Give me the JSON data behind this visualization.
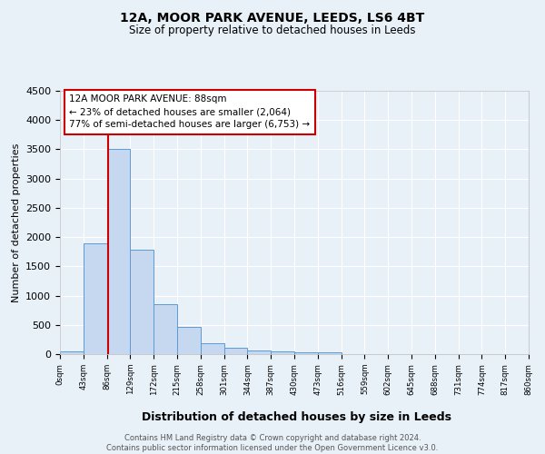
{
  "title": "12A, MOOR PARK AVENUE, LEEDS, LS6 4BT",
  "subtitle": "Size of property relative to detached houses in Leeds",
  "xlabel": "Distribution of detached houses by size in Leeds",
  "ylabel": "Number of detached properties",
  "bar_color": "#c5d8f0",
  "bar_edge_color": "#5b9bd5",
  "bg_color": "#e8f0f8",
  "grid_color": "#ffffff",
  "bins": [
    "0sqm",
    "43sqm",
    "86sqm",
    "129sqm",
    "172sqm",
    "215sqm",
    "258sqm",
    "301sqm",
    "344sqm",
    "387sqm",
    "430sqm",
    "473sqm",
    "516sqm",
    "559sqm",
    "602sqm",
    "645sqm",
    "688sqm",
    "731sqm",
    "774sqm",
    "817sqm",
    "860sqm"
  ],
  "bar_values": [
    50,
    1900,
    3500,
    1780,
    850,
    460,
    185,
    105,
    60,
    40,
    35,
    30,
    5,
    0,
    0,
    0,
    0,
    0,
    0,
    0
  ],
  "vline_x": 88,
  "vline_color": "#cc0000",
  "ylim": [
    0,
    4500
  ],
  "yticks": [
    0,
    500,
    1000,
    1500,
    2000,
    2500,
    3000,
    3500,
    4000,
    4500
  ],
  "annotation_title": "12A MOOR PARK AVENUE: 88sqm",
  "annotation_line1": "← 23% of detached houses are smaller (2,064)",
  "annotation_line2": "77% of semi-detached houses are larger (6,753) →",
  "annotation_box_color": "#ffffff",
  "annotation_box_edge": "#cc0000",
  "footer_line1": "Contains HM Land Registry data © Crown copyright and database right 2024.",
  "footer_line2": "Contains public sector information licensed under the Open Government Licence v3.0.",
  "bin_width": 43
}
